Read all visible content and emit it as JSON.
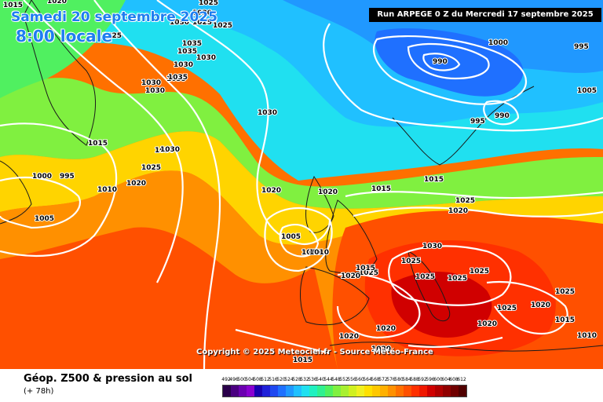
{
  "header": {
    "date_label": "Samedi 20 septembre 2025",
    "time_label": "8:00 locale",
    "run_banner": "Run ARPEGE 0 Z du Mercredi 17 septembre 2025"
  },
  "footer": {
    "product_title": "Géop. Z500 & pression au sol",
    "forecast_hour": "(+ 78h)",
    "copyright": "Copyright © 2025 Meteociel.fr - Source Météo-France"
  },
  "colors": {
    "lowest": "#3a0060",
    "cold": "#1e7ef0",
    "mild": "#7ee84c",
    "warm": "#ffd400",
    "hot": "#ff3a10",
    "highest": "#7a0000",
    "isobars": "#ffffff"
  },
  "color_scale": {
    "labels": [
      "492",
      "496",
      "500",
      "504",
      "508",
      "512",
      "516",
      "520",
      "524",
      "528",
      "532",
      "536",
      "540",
      "544",
      "548",
      "552",
      "556",
      "560",
      "564",
      "568",
      "572",
      "576",
      "580",
      "584",
      "588",
      "592",
      "596",
      "600",
      "604",
      "608",
      "612"
    ],
    "colors": [
      "#2a004a",
      "#4a0080",
      "#6b00b0",
      "#8a00d0",
      "#1800b0",
      "#1f20d8",
      "#1f48f0",
      "#1f70ff",
      "#2098ff",
      "#20c0ff",
      "#20e0f0",
      "#20f0c0",
      "#30f090",
      "#50f060",
      "#80f040",
      "#a8f030",
      "#d0f020",
      "#f0f020",
      "#ffe000",
      "#ffc800",
      "#ffb000",
      "#ff9000",
      "#ff7000",
      "#ff5000",
      "#ff3000",
      "#f01800",
      "#d00000",
      "#b00000",
      "#900000",
      "#700000",
      "#500000"
    ]
  },
  "isobar_labels": [
    {
      "text": "1015"
    },
    {
      "text": "1020"
    },
    {
      "text": "1025"
    },
    {
      "text": "1025"
    },
    {
      "text": "1025"
    },
    {
      "text": "1035"
    },
    {
      "text": "1030"
    },
    {
      "text": "1035"
    },
    {
      "text": "1030"
    },
    {
      "text": "1025"
    },
    {
      "text": "1035"
    },
    {
      "text": "1030"
    },
    {
      "text": "1030"
    },
    {
      "text": "1030"
    },
    {
      "text": "1030"
    },
    {
      "text": "1035"
    },
    {
      "text": "1030"
    },
    {
      "text": "1030"
    },
    {
      "text": "1015"
    },
    {
      "text": "1030"
    },
    {
      "text": "1025"
    },
    {
      "text": "1000"
    },
    {
      "text": "995"
    },
    {
      "text": "1010"
    },
    {
      "text": "1020"
    },
    {
      "text": "1005"
    },
    {
      "text": "1020"
    },
    {
      "text": "1005"
    },
    {
      "text": "1010"
    },
    {
      "text": "1015"
    },
    {
      "text": "1015"
    },
    {
      "text": "1020"
    },
    {
      "text": "1030"
    },
    {
      "text": "1025"
    },
    {
      "text": "1025"
    },
    {
      "text": "1025"
    },
    {
      "text": "1025"
    },
    {
      "text": "1020"
    },
    {
      "text": "1015"
    },
    {
      "text": "1025"
    },
    {
      "text": "1020"
    },
    {
      "text": "1025"
    },
    {
      "text": "1020"
    },
    {
      "text": "1015"
    },
    {
      "text": "1020"
    },
    {
      "text": "1020"
    },
    {
      "text": "1020"
    },
    {
      "text": "1015"
    },
    {
      "text": "1010"
    },
    {
      "text": "1005"
    },
    {
      "text": "1000"
    },
    {
      "text": "995"
    },
    {
      "text": "990"
    },
    {
      "text": "995"
    },
    {
      "text": "990"
    },
    {
      "text": "1025"
    },
    {
      "text": "1025"
    },
    {
      "text": "1020"
    },
    {
      "text": "1010"
    }
  ]
}
